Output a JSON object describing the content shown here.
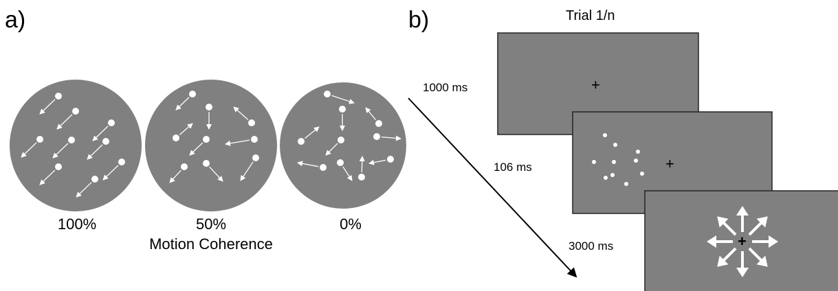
{
  "panel_a": {
    "label": "a)",
    "conditions": [
      {
        "coherence_label": "100%"
      },
      {
        "coherence_label": "50%"
      },
      {
        "coherence_label": "0%"
      }
    ],
    "axis_caption": "Motion Coherence"
  },
  "panel_b": {
    "label": "b)",
    "title": "Trial 1/n",
    "screens": [
      {
        "duration": "1000 ms",
        "content": "fixation cross"
      },
      {
        "duration": "106 ms",
        "content": "random dot motion stimulus"
      },
      {
        "duration": "3000 ms",
        "content": "8-direction response arrows"
      }
    ],
    "fixation_symbol": "+"
  },
  "colors": {
    "stimulus_gray": "#808080",
    "dot_white": "#ffffff",
    "border": "#222222"
  }
}
